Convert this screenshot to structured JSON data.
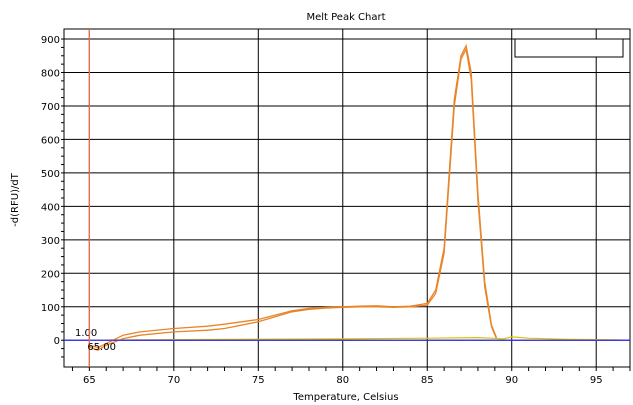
{
  "chart_data": {
    "type": "line",
    "title": "Melt Peak Chart",
    "xlabel": "Temperature, Celsius",
    "ylabel": "-d(RFU)/dT",
    "xlim": [
      63.5,
      97
    ],
    "ylim": [
      -80,
      930
    ],
    "x_ticks": [
      65,
      70,
      75,
      80,
      85,
      90,
      95
    ],
    "y_ticks": [
      0,
      100,
      200,
      300,
      400,
      500,
      600,
      700,
      800,
      900
    ],
    "grid": true,
    "legend": "top-right (empty box)",
    "threshold": {
      "y": 0,
      "label": "1.00",
      "color": "#3333ff"
    },
    "cursor": {
      "x": 65,
      "label": "65.00",
      "color": "#ff6a4d"
    },
    "colors": {
      "series": "#e8852a",
      "baseline": "#e0c000"
    },
    "series": [
      {
        "x": [
          65,
          65.5,
          66,
          67,
          68,
          70,
          72,
          73,
          75,
          76,
          77,
          78,
          79,
          80,
          81,
          82,
          83,
          84,
          85,
          85.5,
          86,
          86.3,
          86.6,
          87,
          87.3,
          87.6,
          88,
          88.4,
          88.8,
          89.1
        ],
        "values": [
          -20,
          -30,
          -15,
          5,
          15,
          25,
          30,
          35,
          55,
          70,
          85,
          92,
          96,
          98,
          100,
          100,
          98,
          100,
          105,
          140,
          260,
          480,
          700,
          840,
          870,
          780,
          420,
          160,
          40,
          5
        ]
      },
      {
        "x": [
          65,
          65.5,
          66,
          67,
          68,
          70,
          72,
          73,
          75,
          76,
          77,
          78,
          79,
          80,
          81,
          82,
          83,
          84,
          85,
          85.5,
          86,
          86.3,
          86.6,
          87,
          87.3,
          87.6,
          88,
          88.4,
          88.8,
          89.1
        ],
        "values": [
          -15,
          -22,
          -10,
          15,
          25,
          35,
          42,
          48,
          62,
          75,
          88,
          95,
          98,
          100,
          102,
          103,
          100,
          102,
          110,
          150,
          275,
          500,
          720,
          850,
          880,
          800,
          440,
          175,
          45,
          8
        ]
      },
      {
        "x": [
          65,
          67,
          70,
          75,
          80,
          85,
          88,
          88.8,
          89.5,
          90,
          91,
          93,
          95,
          96.5
        ],
        "values": [
          0,
          1,
          2,
          3,
          4,
          6,
          8,
          6,
          4,
          10,
          6,
          3,
          2,
          1
        ]
      }
    ]
  }
}
